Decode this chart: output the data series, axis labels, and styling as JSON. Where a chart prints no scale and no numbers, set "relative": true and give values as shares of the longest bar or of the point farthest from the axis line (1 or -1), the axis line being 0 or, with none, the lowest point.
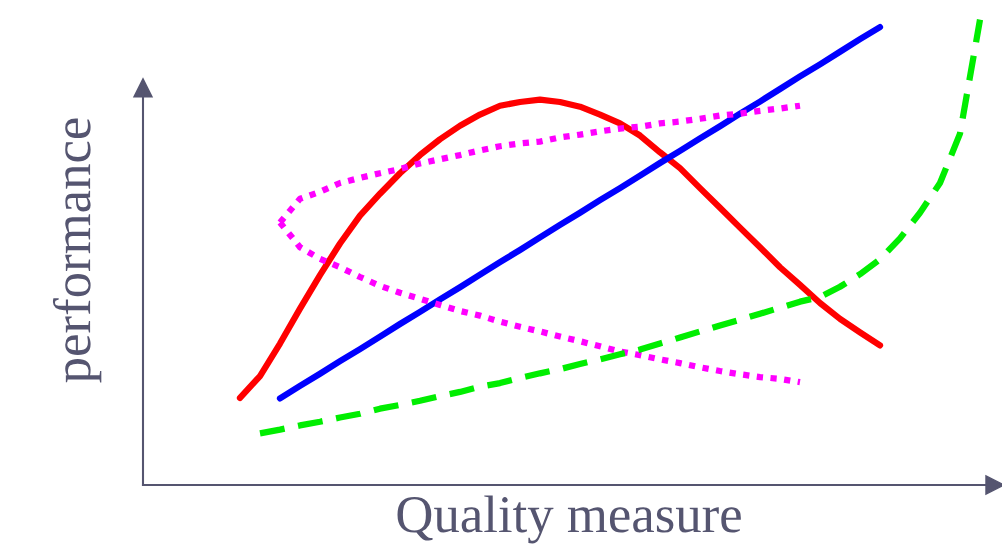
{
  "chart_data": {
    "type": "line",
    "relative": true,
    "xlabel": "Quality measure",
    "ylabel": "performance",
    "marker": "none",
    "categories": [
      null,
      null,
      null,
      null,
      null,
      null,
      null,
      null,
      null,
      null,
      null,
      null,
      null,
      null,
      null,
      null,
      null,
      null,
      null,
      null,
      null,
      null,
      null,
      null,
      null,
      null,
      null,
      null,
      null,
      null,
      null,
      null,
      null,
      null,
      null,
      null,
      null,
      null
    ],
    "series": [
      {
        "color": "#ff0000",
        "line_style": "solid",
        "values": [
          0.187,
          0.234,
          0.304,
          0.379,
          0.451,
          0.519,
          0.579,
          0.626,
          0.67,
          0.709,
          0.743,
          0.772,
          0.796,
          0.815,
          0.823,
          0.828,
          0.823,
          0.813,
          0.796,
          0.777,
          0.751,
          0.715,
          0.681,
          0.638,
          0.596,
          0.553,
          0.511,
          0.468,
          0.43,
          0.391,
          0.357,
          0.328,
          0.3,
          null,
          null,
          null,
          null,
          null
        ]
      },
      {
        "color": "#0000ff",
        "line_style": "solid",
        "values": [
          null,
          null,
          0.186,
          0.213,
          0.239,
          0.266,
          0.292,
          0.319,
          0.346,
          0.372,
          0.399,
          0.425,
          0.452,
          0.479,
          0.505,
          0.532,
          0.559,
          0.585,
          0.612,
          0.638,
          0.665,
          0.692,
          0.718,
          0.745,
          0.771,
          0.798,
          0.824,
          0.851,
          0.878,
          0.904,
          0.931,
          0.958,
          0.984,
          null,
          null,
          null,
          null,
          null
        ]
      },
      {
        "color": "#ff00ff",
        "line_style": "dotted",
        "values": [
          null,
          null,
          0.564,
          0.615,
          0.63,
          0.649,
          0.66,
          0.67,
          0.679,
          0.691,
          0.7,
          0.709,
          0.719,
          0.728,
          0.734,
          0.738,
          0.747,
          0.753,
          0.76,
          0.766,
          0.77,
          0.777,
          0.781,
          0.787,
          0.794,
          0.798,
          0.804,
          0.809,
          0.815,
          null,
          null,
          null,
          null,
          null,
          null,
          null,
          null,
          null
        ]
      },
      {
        "color": "#ff00ff",
        "line_style": "dotted",
        "values": [
          null,
          null,
          0.564,
          0.511,
          0.486,
          0.468,
          0.447,
          0.428,
          0.413,
          0.4,
          0.387,
          0.374,
          0.364,
          0.351,
          0.34,
          0.33,
          0.319,
          0.309,
          0.298,
          0.287,
          0.279,
          0.27,
          0.262,
          0.253,
          0.245,
          0.238,
          0.232,
          0.228,
          0.221,
          null,
          null,
          null,
          null,
          null,
          null,
          null,
          null,
          null
        ]
      },
      {
        "color": "#00ee00",
        "line_style": "dashed",
        "values": [
          null,
          0.111,
          0.119,
          0.128,
          0.136,
          0.145,
          0.153,
          0.164,
          0.172,
          0.181,
          0.191,
          0.2,
          0.211,
          0.219,
          0.23,
          0.24,
          0.249,
          0.26,
          0.27,
          0.281,
          0.291,
          0.304,
          0.317,
          0.33,
          0.343,
          0.355,
          0.368,
          0.381,
          0.394,
          0.404,
          0.426,
          0.453,
          0.485,
          0.53,
          0.585,
          0.649,
          0.755,
          1.0
        ]
      }
    ]
  }
}
